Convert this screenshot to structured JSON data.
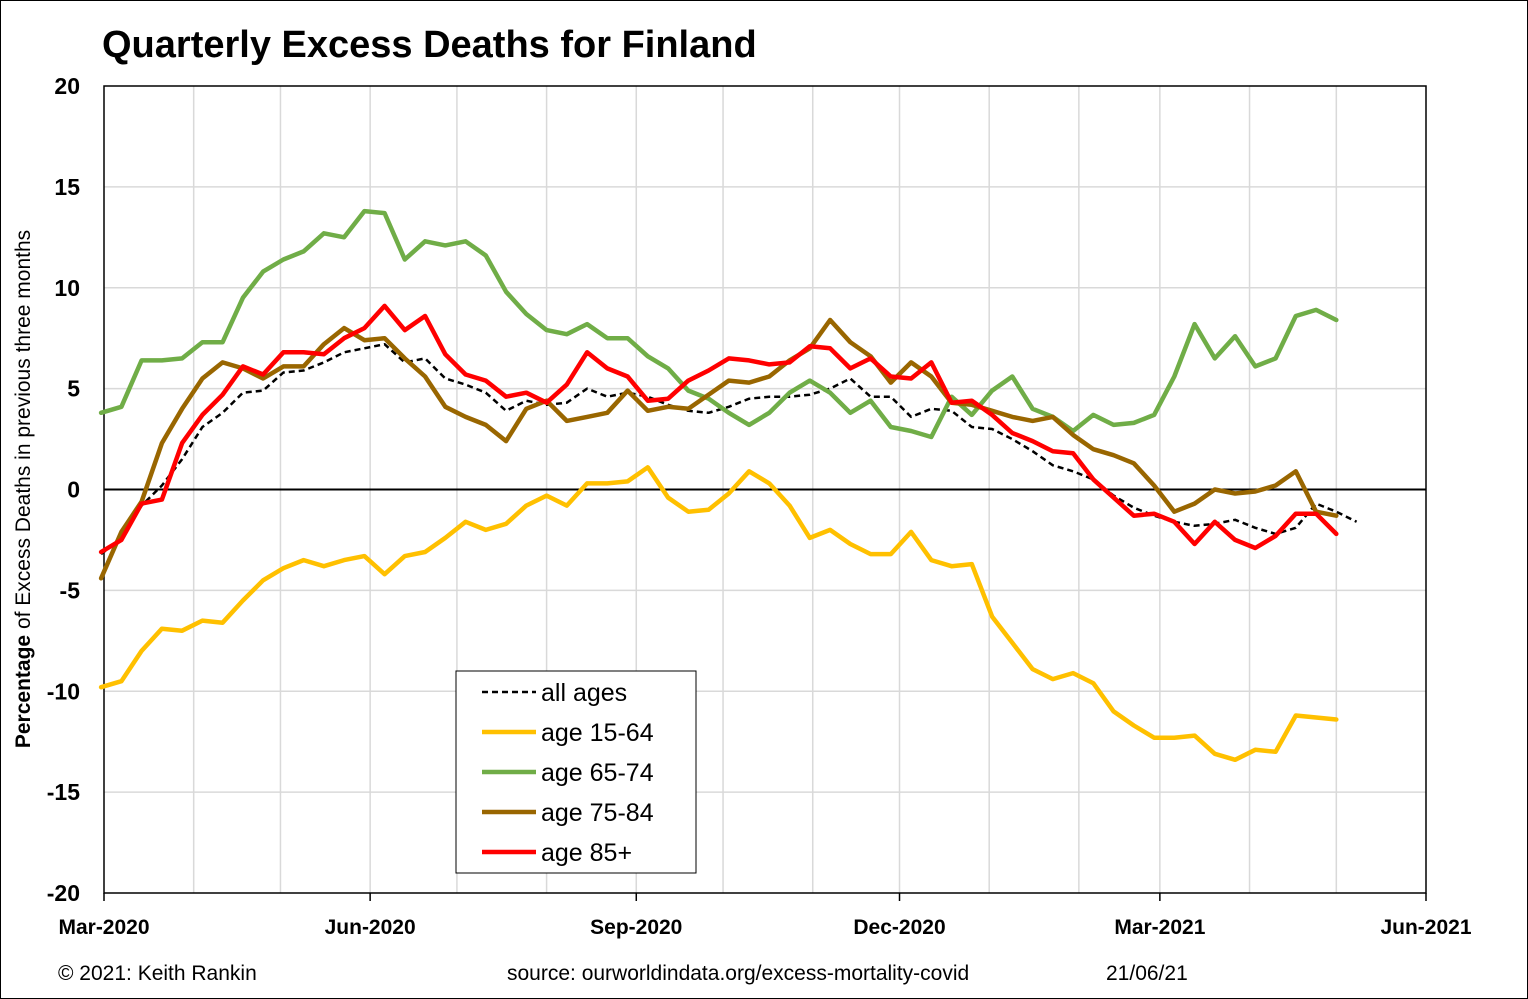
{
  "chart_data": {
    "type": "line",
    "title": "Quarterly Excess Deaths for Finland",
    "ylabel_bold": "Percentage",
    "ylabel_rest": " of Excess Deaths in previous three months",
    "xlabel": "",
    "ylim": [
      -20,
      20
    ],
    "yticks": [
      20,
      15,
      10,
      5,
      0,
      -5,
      -10,
      -15,
      -20
    ],
    "xlim": [
      "2020-03-01",
      "2021-06-01"
    ],
    "xticks": [
      "Mar-2020",
      "Jun-2020",
      "Sep-2020",
      "Dec-2020",
      "Mar-2021",
      "Jun-2021"
    ],
    "grid": true,
    "legend_position": "bottom-center",
    "start_date": "2020-02-29",
    "interval_days": 7,
    "series": [
      {
        "name": "all ages",
        "color": "#000000",
        "dash": true,
        "values": [
          -3.2,
          -2.4,
          -0.8,
          0.2,
          1.5,
          3.1,
          3.8,
          4.8,
          4.9,
          5.8,
          5.9,
          6.3,
          6.8,
          7.0,
          7.2,
          6.3,
          6.5,
          5.5,
          5.2,
          4.8,
          3.9,
          4.4,
          4.2,
          4.3,
          5.0,
          4.6,
          4.8,
          4.6,
          4.2,
          3.9,
          3.8,
          4.1,
          4.5,
          4.6,
          4.6,
          4.7,
          5.0,
          5.5,
          4.6,
          4.6,
          3.6,
          4.0,
          3.9,
          3.1,
          3.0,
          2.5,
          1.9,
          1.2,
          0.9,
          0.5,
          -0.3,
          -0.9,
          -1.3,
          -1.6,
          -1.8,
          -1.7,
          -1.5,
          -1.9,
          -2.2,
          -1.9,
          -0.7,
          -1.1,
          -1.6
        ]
      },
      {
        "name": "age 15-64",
        "color": "#FFC000",
        "dash": false,
        "values": [
          -9.8,
          -9.5,
          -8.0,
          -6.9,
          -7.0,
          -6.5,
          -6.6,
          -5.5,
          -4.5,
          -3.9,
          -3.5,
          -3.8,
          -3.5,
          -3.3,
          -4.2,
          -3.3,
          -3.1,
          -2.4,
          -1.6,
          -2.0,
          -1.7,
          -0.8,
          -0.3,
          -0.8,
          0.3,
          0.3,
          0.4,
          1.1,
          -0.4,
          -1.1,
          -1.0,
          -0.2,
          0.9,
          0.3,
          -0.8,
          -2.4,
          -2.0,
          -2.7,
          -3.2,
          -3.2,
          -2.1,
          -3.5,
          -3.8,
          -3.7,
          -6.3,
          -7.6,
          -8.9,
          -9.4,
          -9.1,
          -9.6,
          -11.0,
          -11.7,
          -12.3,
          -12.3,
          -12.2,
          -13.1,
          -13.4,
          -12.9,
          -13.0,
          -11.2,
          -11.3,
          -11.4
        ]
      },
      {
        "name": "age 65-74",
        "color": "#70AD47",
        "dash": false,
        "values": [
          3.8,
          4.1,
          6.4,
          6.4,
          6.5,
          7.3,
          7.3,
          9.5,
          10.8,
          11.4,
          11.8,
          12.7,
          12.5,
          13.8,
          13.7,
          11.4,
          12.3,
          12.1,
          12.3,
          11.6,
          9.8,
          8.7,
          7.9,
          7.7,
          8.2,
          7.5,
          7.5,
          6.6,
          6.0,
          4.9,
          4.5,
          3.8,
          3.2,
          3.8,
          4.8,
          5.4,
          4.8,
          3.8,
          4.4,
          3.1,
          2.9,
          2.6,
          4.6,
          3.7,
          4.9,
          5.6,
          4.0,
          3.6,
          2.9,
          3.7,
          3.2,
          3.3,
          3.7,
          5.6,
          8.2,
          6.5,
          7.6,
          6.1,
          6.5,
          8.6,
          8.9,
          8.4
        ]
      },
      {
        "name": "age 75-84",
        "color": "#996600",
        "dash": false,
        "values": [
          -4.4,
          -2.1,
          -0.6,
          2.3,
          4.0,
          5.5,
          6.3,
          6.0,
          5.5,
          6.1,
          6.1,
          7.2,
          8.0,
          7.4,
          7.5,
          6.5,
          5.6,
          4.1,
          3.6,
          3.2,
          2.4,
          4.0,
          4.4,
          3.4,
          3.6,
          3.8,
          4.9,
          3.9,
          4.1,
          4.0,
          4.7,
          5.4,
          5.3,
          5.6,
          6.4,
          7.0,
          8.4,
          7.3,
          6.6,
          5.3,
          6.3,
          5.6,
          4.3,
          4.2,
          3.9,
          3.6,
          3.4,
          3.6,
          2.7,
          2.0,
          1.7,
          1.3,
          0.2,
          -1.1,
          -0.7,
          0.0,
          -0.2,
          -0.1,
          0.2,
          0.9,
          -1.1,
          -1.3
        ]
      },
      {
        "name": "age 85+",
        "color": "#FF0000",
        "dash": false,
        "values": [
          -3.1,
          -2.5,
          -0.7,
          -0.5,
          2.3,
          3.7,
          4.7,
          6.1,
          5.7,
          6.8,
          6.8,
          6.7,
          7.5,
          8.0,
          9.1,
          7.9,
          8.6,
          6.7,
          5.7,
          5.4,
          4.6,
          4.8,
          4.3,
          5.2,
          6.8,
          6.0,
          5.6,
          4.4,
          4.5,
          5.4,
          5.9,
          6.5,
          6.4,
          6.2,
          6.3,
          7.1,
          7.0,
          6.0,
          6.5,
          5.6,
          5.5,
          6.3,
          4.3,
          4.4,
          3.7,
          2.8,
          2.4,
          1.9,
          1.8,
          0.5,
          -0.4,
          -1.3,
          -1.2,
          -1.6,
          -2.7,
          -1.6,
          -2.5,
          -2.9,
          -2.3,
          -1.2,
          -1.2,
          -2.2
        ]
      }
    ]
  },
  "footer": {
    "copyright": "© 2021: Keith Rankin",
    "source": "source: ourworldindata.org/excess-mortality-covid",
    "date": "21/06/21"
  }
}
